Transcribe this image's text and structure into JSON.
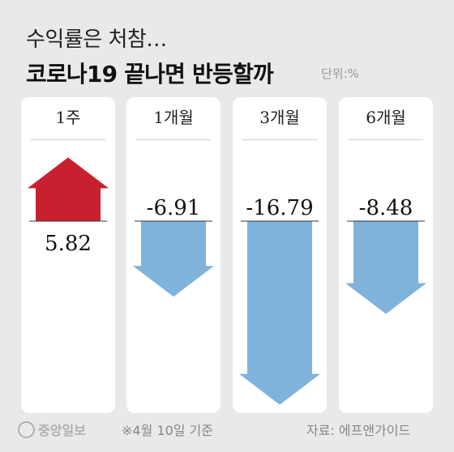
{
  "header": {
    "subtitle": "수익률은 처참…",
    "title": "코로나19 끝나면 반등할까",
    "unit": "단위:%"
  },
  "chart_data": {
    "type": "bar",
    "title": "코로나19 끝나면 반등할까",
    "subtitle": "수익률은 처참…",
    "unit": "%",
    "categories": [
      "1주",
      "1개월",
      "3개월",
      "6개월"
    ],
    "values": [
      5.82,
      -6.91,
      -16.79,
      -8.48
    ],
    "value_labels": [
      "5.82",
      "-6.91",
      "-16.79",
      "-8.48"
    ],
    "colors": {
      "positive": "#c8202f",
      "negative": "#7fb3db"
    }
  },
  "footer": {
    "logo": "중앙일보",
    "note": "※4월 10일 기준",
    "source": "자료: 에프앤가이드"
  }
}
